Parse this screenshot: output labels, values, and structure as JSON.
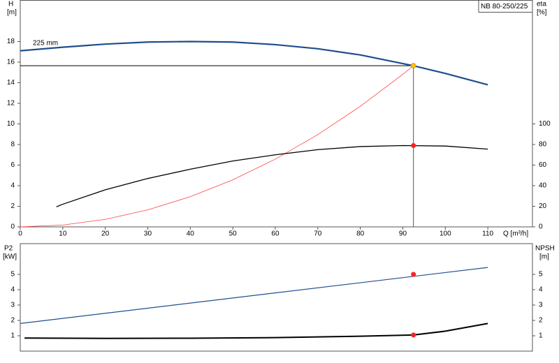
{
  "chart_data": [
    {
      "type": "line",
      "title": "NB 80-250/225",
      "ylabel": "H",
      "yunit": "[m]",
      "y2label": "eta",
      "y2unit": "[%]",
      "xlabel": "Q [m³/h]",
      "xlim": [
        0,
        120.5
      ],
      "xticks": [
        0,
        10,
        20,
        30,
        40,
        50,
        60,
        70,
        80,
        90,
        100,
        110
      ],
      "ylim": [
        0,
        22
      ],
      "yticks": [
        0,
        2,
        4,
        6,
        8,
        10,
        12,
        14,
        16,
        18
      ],
      "y2lim": [
        0,
        220
      ],
      "y2ticks": [
        0,
        20,
        40,
        60,
        80,
        100
      ],
      "series": [
        {
          "name": "225 mm",
          "color": "#1f4e8c",
          "width": 2.2,
          "x": [
            0,
            10,
            20,
            30,
            40,
            50,
            60,
            70,
            80,
            92.5,
            100,
            110
          ],
          "values": [
            17.1,
            17.45,
            17.75,
            17.95,
            18.0,
            17.95,
            17.7,
            17.3,
            16.7,
            15.65,
            14.9,
            13.8
          ]
        },
        {
          "color": "#ff4040",
          "width": 0.8,
          "x": [
            0,
            10,
            20,
            30,
            40,
            50,
            60,
            70,
            80,
            90,
            92.5
          ],
          "values": [
            0,
            0.18,
            0.73,
            1.65,
            2.93,
            4.57,
            6.58,
            8.96,
            11.71,
            14.82,
            15.65
          ]
        },
        {
          "color": "#000000",
          "width": 1.3,
          "axis": "y2",
          "x": [
            8.5,
            10,
            20,
            30,
            40,
            50,
            60,
            70,
            80,
            90,
            100,
            110
          ],
          "values": [
            19.5,
            22,
            36,
            47,
            56,
            64,
            70,
            75,
            78,
            79,
            78.5,
            75.5
          ]
        }
      ],
      "points": [
        {
          "x": 92.5,
          "y": 15.65,
          "color": "#ffc000",
          "guides": true
        },
        {
          "x": 92.5,
          "y": 79,
          "color": "#ff2020",
          "axis": "y2"
        }
      ]
    },
    {
      "type": "line",
      "ylabel": "P2",
      "yunit": "[kW]",
      "y2label": "NPSH",
      "y2unit": "[m]",
      "xlim": [
        0,
        120.5
      ],
      "ylim": [
        0,
        7
      ],
      "yticks": [
        1,
        2,
        3,
        4,
        5
      ],
      "y2lim": [
        0,
        7
      ],
      "y2ticks": [
        1,
        2,
        3,
        4,
        5
      ],
      "series": [
        {
          "color": "#1f4e8c",
          "width": 1.2,
          "x": [
            0,
            110
          ],
          "values": [
            1.8,
            5.45
          ]
        },
        {
          "color": "#000000",
          "width": 2,
          "axis": "y2",
          "x": [
            1,
            20,
            40,
            60,
            80,
            92.5,
            100,
            110
          ],
          "values": [
            0.85,
            0.83,
            0.84,
            0.88,
            0.97,
            1.05,
            1.3,
            1.8
          ]
        }
      ],
      "points": [
        {
          "x": 92.5,
          "y": 5.0,
          "color": "#ff2020"
        },
        {
          "x": 92.5,
          "y": 1.05,
          "color": "#ff2020",
          "axis": "y2"
        }
      ]
    }
  ]
}
